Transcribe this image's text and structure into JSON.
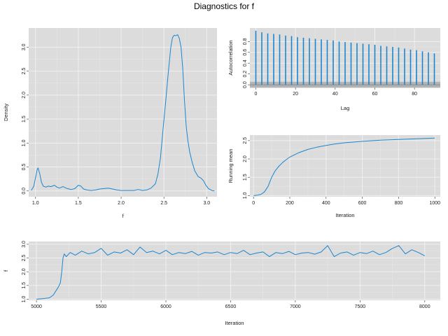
{
  "title": "Diagnostics for f",
  "colors": {
    "panel_bg": "#dcdcdc",
    "grid_major": "#f0f0f0",
    "grid_minor": "#e6e6e6",
    "line": "#1a86d0",
    "conf_band": "#b3b3b3",
    "text": "#1a1a1a"
  },
  "chart_data": [
    {
      "id": "density",
      "type": "line",
      "xlabel": "f",
      "ylabel": "Density",
      "xlim": [
        0.92,
        3.12
      ],
      "ylim": [
        -0.12,
        3.4
      ],
      "xticks": [
        1.0,
        1.5,
        2.0,
        2.5,
        3.0
      ],
      "xticklabels": [
        "1.0",
        "1.5",
        "2.0",
        "2.5",
        "3.0"
      ],
      "yticks": [
        0.0,
        0.5,
        1.0,
        1.5,
        2.0,
        2.5,
        3.0
      ],
      "yticklabels": [
        "0.0",
        "0.5",
        "1.0",
        "1.5",
        "2.0",
        "2.5",
        "3.0"
      ],
      "grid": true,
      "x": [
        0.95,
        0.98,
        1.0,
        1.02,
        1.03,
        1.05,
        1.07,
        1.09,
        1.12,
        1.15,
        1.18,
        1.22,
        1.25,
        1.28,
        1.32,
        1.37,
        1.42,
        1.46,
        1.5,
        1.53,
        1.56,
        1.6,
        1.65,
        1.7,
        1.75,
        1.8,
        1.85,
        1.9,
        1.95,
        2.0,
        2.05,
        2.1,
        2.15,
        2.2,
        2.25,
        2.3,
        2.35,
        2.4,
        2.43,
        2.46,
        2.49,
        2.52,
        2.55,
        2.58,
        2.6,
        2.62,
        2.64,
        2.66,
        2.68,
        2.7,
        2.72,
        2.74,
        2.76,
        2.78,
        2.8,
        2.83,
        2.86,
        2.9,
        2.93,
        2.96,
        2.99,
        3.02,
        3.06,
        3.09
      ],
      "y": [
        0.01,
        0.1,
        0.28,
        0.45,
        0.48,
        0.35,
        0.18,
        0.1,
        0.08,
        0.1,
        0.09,
        0.12,
        0.08,
        0.06,
        0.09,
        0.05,
        0.03,
        0.05,
        0.12,
        0.1,
        0.04,
        0.02,
        0.01,
        0.02,
        0.04,
        0.05,
        0.06,
        0.04,
        0.02,
        0.01,
        0.01,
        0.01,
        0.01,
        0.03,
        0.01,
        0.02,
        0.06,
        0.15,
        0.35,
        0.7,
        1.3,
        1.85,
        2.45,
        3.0,
        3.2,
        3.25,
        3.24,
        3.26,
        3.18,
        3.0,
        2.55,
        1.9,
        1.35,
        1.05,
        0.82,
        0.6,
        0.42,
        0.3,
        0.27,
        0.22,
        0.12,
        0.05,
        0.01,
        0.0
      ]
    },
    {
      "id": "autocorrelation",
      "type": "bar",
      "xlabel": "Lag",
      "ylabel": "Autocorrelation",
      "xlim": [
        -3,
        93
      ],
      "ylim": [
        -0.05,
        1.05
      ],
      "xticks": [
        0,
        20,
        40,
        60,
        80
      ],
      "xticklabels": [
        "0",
        "20",
        "40",
        "60",
        "80"
      ],
      "yticks": [
        0.0,
        0.2,
        0.4,
        0.6,
        0.8
      ],
      "yticklabels": [
        "0.0",
        "0.2",
        "0.4",
        "0.6",
        "0.8"
      ],
      "conf_band": [
        -0.055,
        0.055
      ],
      "lags": [
        0,
        3,
        6,
        9,
        12,
        15,
        18,
        21,
        24,
        27,
        30,
        33,
        36,
        39,
        42,
        45,
        48,
        51,
        54,
        57,
        60,
        63,
        66,
        69,
        72,
        75,
        78,
        81,
        84,
        87,
        90
      ],
      "values": [
        1.0,
        0.97,
        0.95,
        0.94,
        0.93,
        0.91,
        0.9,
        0.88,
        0.87,
        0.86,
        0.85,
        0.84,
        0.83,
        0.82,
        0.8,
        0.79,
        0.78,
        0.77,
        0.76,
        0.75,
        0.74,
        0.72,
        0.71,
        0.7,
        0.69,
        0.67,
        0.65,
        0.64,
        0.62,
        0.6,
        0.58
      ]
    },
    {
      "id": "running_mean",
      "type": "line",
      "xlabel": "Iteration",
      "ylabel": "Running mean",
      "xlim": [
        -20,
        1030
      ],
      "ylim": [
        0.97,
        2.65
      ],
      "xticks": [
        0,
        200,
        400,
        600,
        800,
        1000
      ],
      "xticklabels": [
        "0",
        "200",
        "400",
        "600",
        "800",
        "1000"
      ],
      "yticks": [
        1.0,
        1.5,
        2.0,
        2.5
      ],
      "yticklabels": [
        "1.0",
        "1.5",
        "2.0",
        "2.5"
      ],
      "x": [
        1,
        20,
        40,
        60,
        80,
        100,
        120,
        140,
        160,
        180,
        200,
        250,
        300,
        350,
        400,
        450,
        500,
        600,
        700,
        800,
        900,
        1000
      ],
      "y": [
        1.0,
        1.01,
        1.03,
        1.1,
        1.25,
        1.5,
        1.68,
        1.8,
        1.9,
        1.98,
        2.05,
        2.17,
        2.26,
        2.32,
        2.37,
        2.41,
        2.44,
        2.48,
        2.51,
        2.53,
        2.55,
        2.57
      ]
    },
    {
      "id": "trace",
      "type": "line",
      "xlabel": "Iteration",
      "ylabel": "f",
      "xlim": [
        4940,
        8120
      ],
      "ylim": [
        0.96,
        3.1
      ],
      "xticks": [
        5000,
        5500,
        6000,
        6500,
        7000,
        7500,
        8000
      ],
      "xticklabels": [
        "5000",
        "5500",
        "6000",
        "6500",
        "7000",
        "7500",
        "8000"
      ],
      "yticks": [
        1.0,
        1.5,
        2.0,
        2.5,
        3.0
      ],
      "yticklabels": [
        "1.0",
        "1.5",
        "2.0",
        "2.5",
        "3.0"
      ],
      "x": [
        5000,
        5050,
        5100,
        5130,
        5150,
        5170,
        5185,
        5195,
        5205,
        5215,
        5230,
        5260,
        5300,
        5350,
        5400,
        5450,
        5500,
        5550,
        5600,
        5650,
        5700,
        5750,
        5800,
        5850,
        5900,
        5950,
        6000,
        6050,
        6100,
        6150,
        6200,
        6250,
        6300,
        6350,
        6400,
        6450,
        6500,
        6550,
        6600,
        6650,
        6700,
        6750,
        6800,
        6850,
        6900,
        6950,
        7000,
        7050,
        7100,
        7150,
        7200,
        7250,
        7300,
        7350,
        7400,
        7450,
        7500,
        7550,
        7600,
        7650,
        7700,
        7750,
        7800,
        7850,
        7900,
        7950,
        8000
      ],
      "y": [
        1.0,
        1.02,
        1.05,
        1.15,
        1.3,
        1.45,
        1.6,
        2.0,
        2.5,
        2.65,
        2.55,
        2.7,
        2.6,
        2.75,
        2.65,
        2.7,
        2.85,
        2.6,
        2.72,
        2.68,
        2.8,
        2.62,
        2.9,
        2.7,
        2.75,
        2.65,
        2.78,
        2.62,
        2.7,
        2.66,
        2.74,
        2.6,
        2.7,
        2.68,
        2.72,
        2.62,
        2.7,
        2.66,
        2.78,
        2.62,
        2.68,
        2.72,
        2.55,
        2.7,
        2.66,
        2.74,
        2.62,
        2.68,
        2.7,
        2.64,
        2.72,
        2.95,
        2.55,
        2.68,
        2.72,
        2.6,
        2.7,
        2.66,
        2.75,
        2.62,
        2.7,
        2.85,
        2.95,
        2.65,
        2.8,
        2.7,
        2.58
      ]
    }
  ]
}
